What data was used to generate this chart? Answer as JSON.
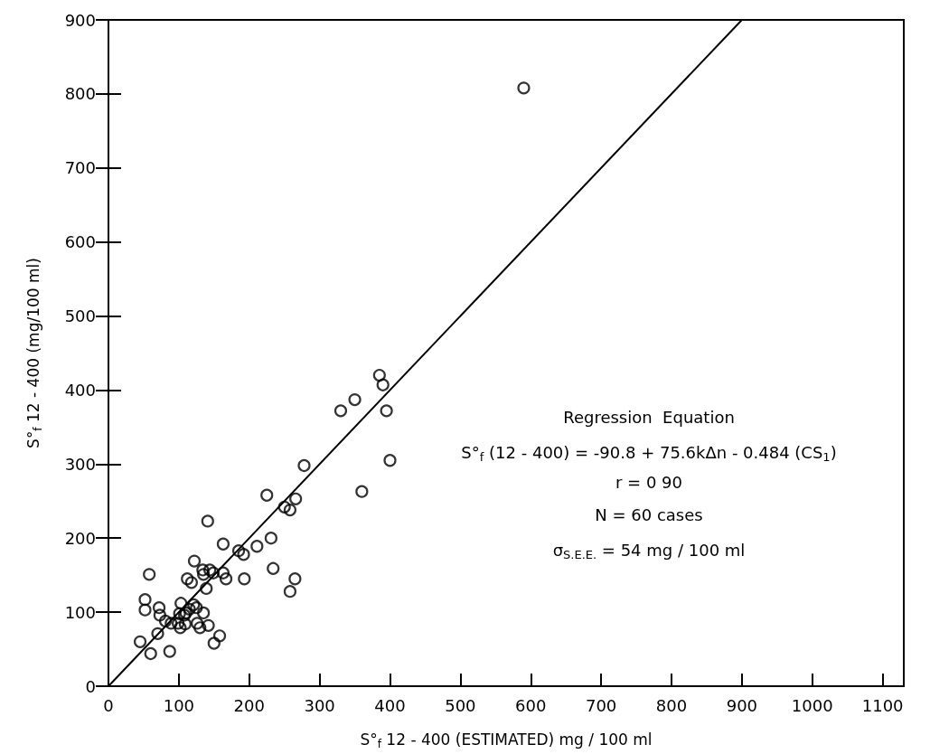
{
  "chart_data": {
    "type": "scatter",
    "xlabel": "S°$_{f}$ 12 - 400 (ESTIMATED) mg / 100 ml",
    "ylabel": "S°$_{f}$ 12 - 400 (mg/100 ml)",
    "annotations": [
      "Regression  Equation",
      "S°$_{f}$ (12 - 400) = -90.8 + 75.6kΔn - 0.484 (CS$_{1}$)",
      "r = 0 90",
      "N = 60 cases",
      "σ$_{S.E.E.}$ = 54 mg / 100 ml"
    ],
    "xlim": [
      0,
      1130
    ],
    "xticks": [
      0,
      100,
      200,
      300,
      400,
      500,
      600,
      700,
      800,
      900,
      1000,
      1100
    ],
    "ylim": [
      0,
      900
    ],
    "yticks": [
      0,
      100,
      200,
      300,
      400,
      500,
      600,
      700,
      800,
      900
    ],
    "grid": false,
    "series": [
      {
        "color": "#000000",
        "marker": "circle",
        "x": [
          141,
          163,
          185,
          192,
          211,
          231,
          234,
          58,
          122,
          134,
          144,
          135,
          149,
          163,
          167,
          193,
          112,
          118,
          139,
          52,
          52,
          103,
          72,
          121,
          125,
          73,
          101,
          110,
          135,
          81,
          89,
          99,
          102,
          109,
          108,
          126,
          130,
          142,
          70,
          45,
          60,
          87,
          150,
          158,
          115,
          225,
          250,
          258,
          266,
          278,
          265,
          258,
          330,
          350,
          385,
          390,
          395,
          400,
          360,
          590
        ],
        "values": [
          223,
          192,
          183,
          178,
          189,
          200,
          159,
          151,
          169,
          157,
          157,
          151,
          153,
          153,
          145,
          145,
          145,
          140,
          132,
          117,
          103,
          112,
          106,
          110,
          106,
          96,
          98,
          99,
          99,
          88,
          85,
          85,
          79,
          84,
          96,
          85,
          79,
          82,
          71,
          60,
          44,
          47,
          58,
          68,
          104,
          258,
          242,
          238,
          253,
          298,
          145,
          128,
          372,
          387,
          420,
          407,
          372,
          305,
          263,
          808
        ]
      },
      {
        "type": "line",
        "color": "#000000",
        "marker": "none",
        "line_style": "solid",
        "x": [
          0,
          900
        ],
        "values": [
          0,
          900
        ]
      }
    ]
  }
}
